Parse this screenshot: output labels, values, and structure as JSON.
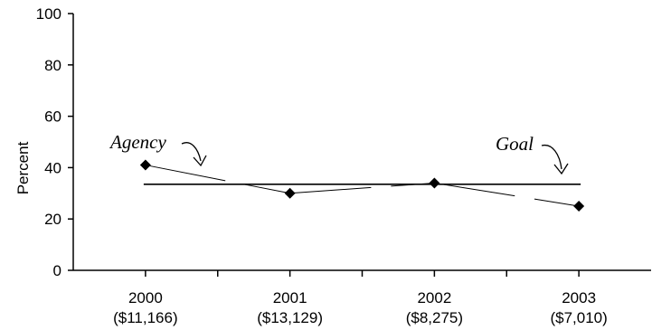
{
  "chart_data": {
    "type": "line",
    "ylabel": "Percent",
    "ylim": [
      0,
      100
    ],
    "yticks": [
      "0",
      "20",
      "40",
      "60",
      "80",
      "100"
    ],
    "categories": [
      {
        "year": "2000",
        "amount": "($11,166)"
      },
      {
        "year": "2001",
        "amount": "($13,129)"
      },
      {
        "year": "2002",
        "amount": "($8,275)"
      },
      {
        "year": "2003",
        "amount": "($7,010)"
      }
    ],
    "series": [
      {
        "name": "Agency",
        "values": [
          41,
          30,
          34,
          25
        ]
      },
      {
        "name": "Goal",
        "values": [
          33.5,
          33.5,
          33.5,
          33.5
        ]
      }
    ],
    "annotations": [
      {
        "text": "Agency",
        "target": "agency"
      },
      {
        "text": "Goal",
        "target": "goal"
      }
    ],
    "grid": false,
    "legend": "none",
    "colors": {
      "line": "#000000",
      "marker": "#000000"
    }
  }
}
